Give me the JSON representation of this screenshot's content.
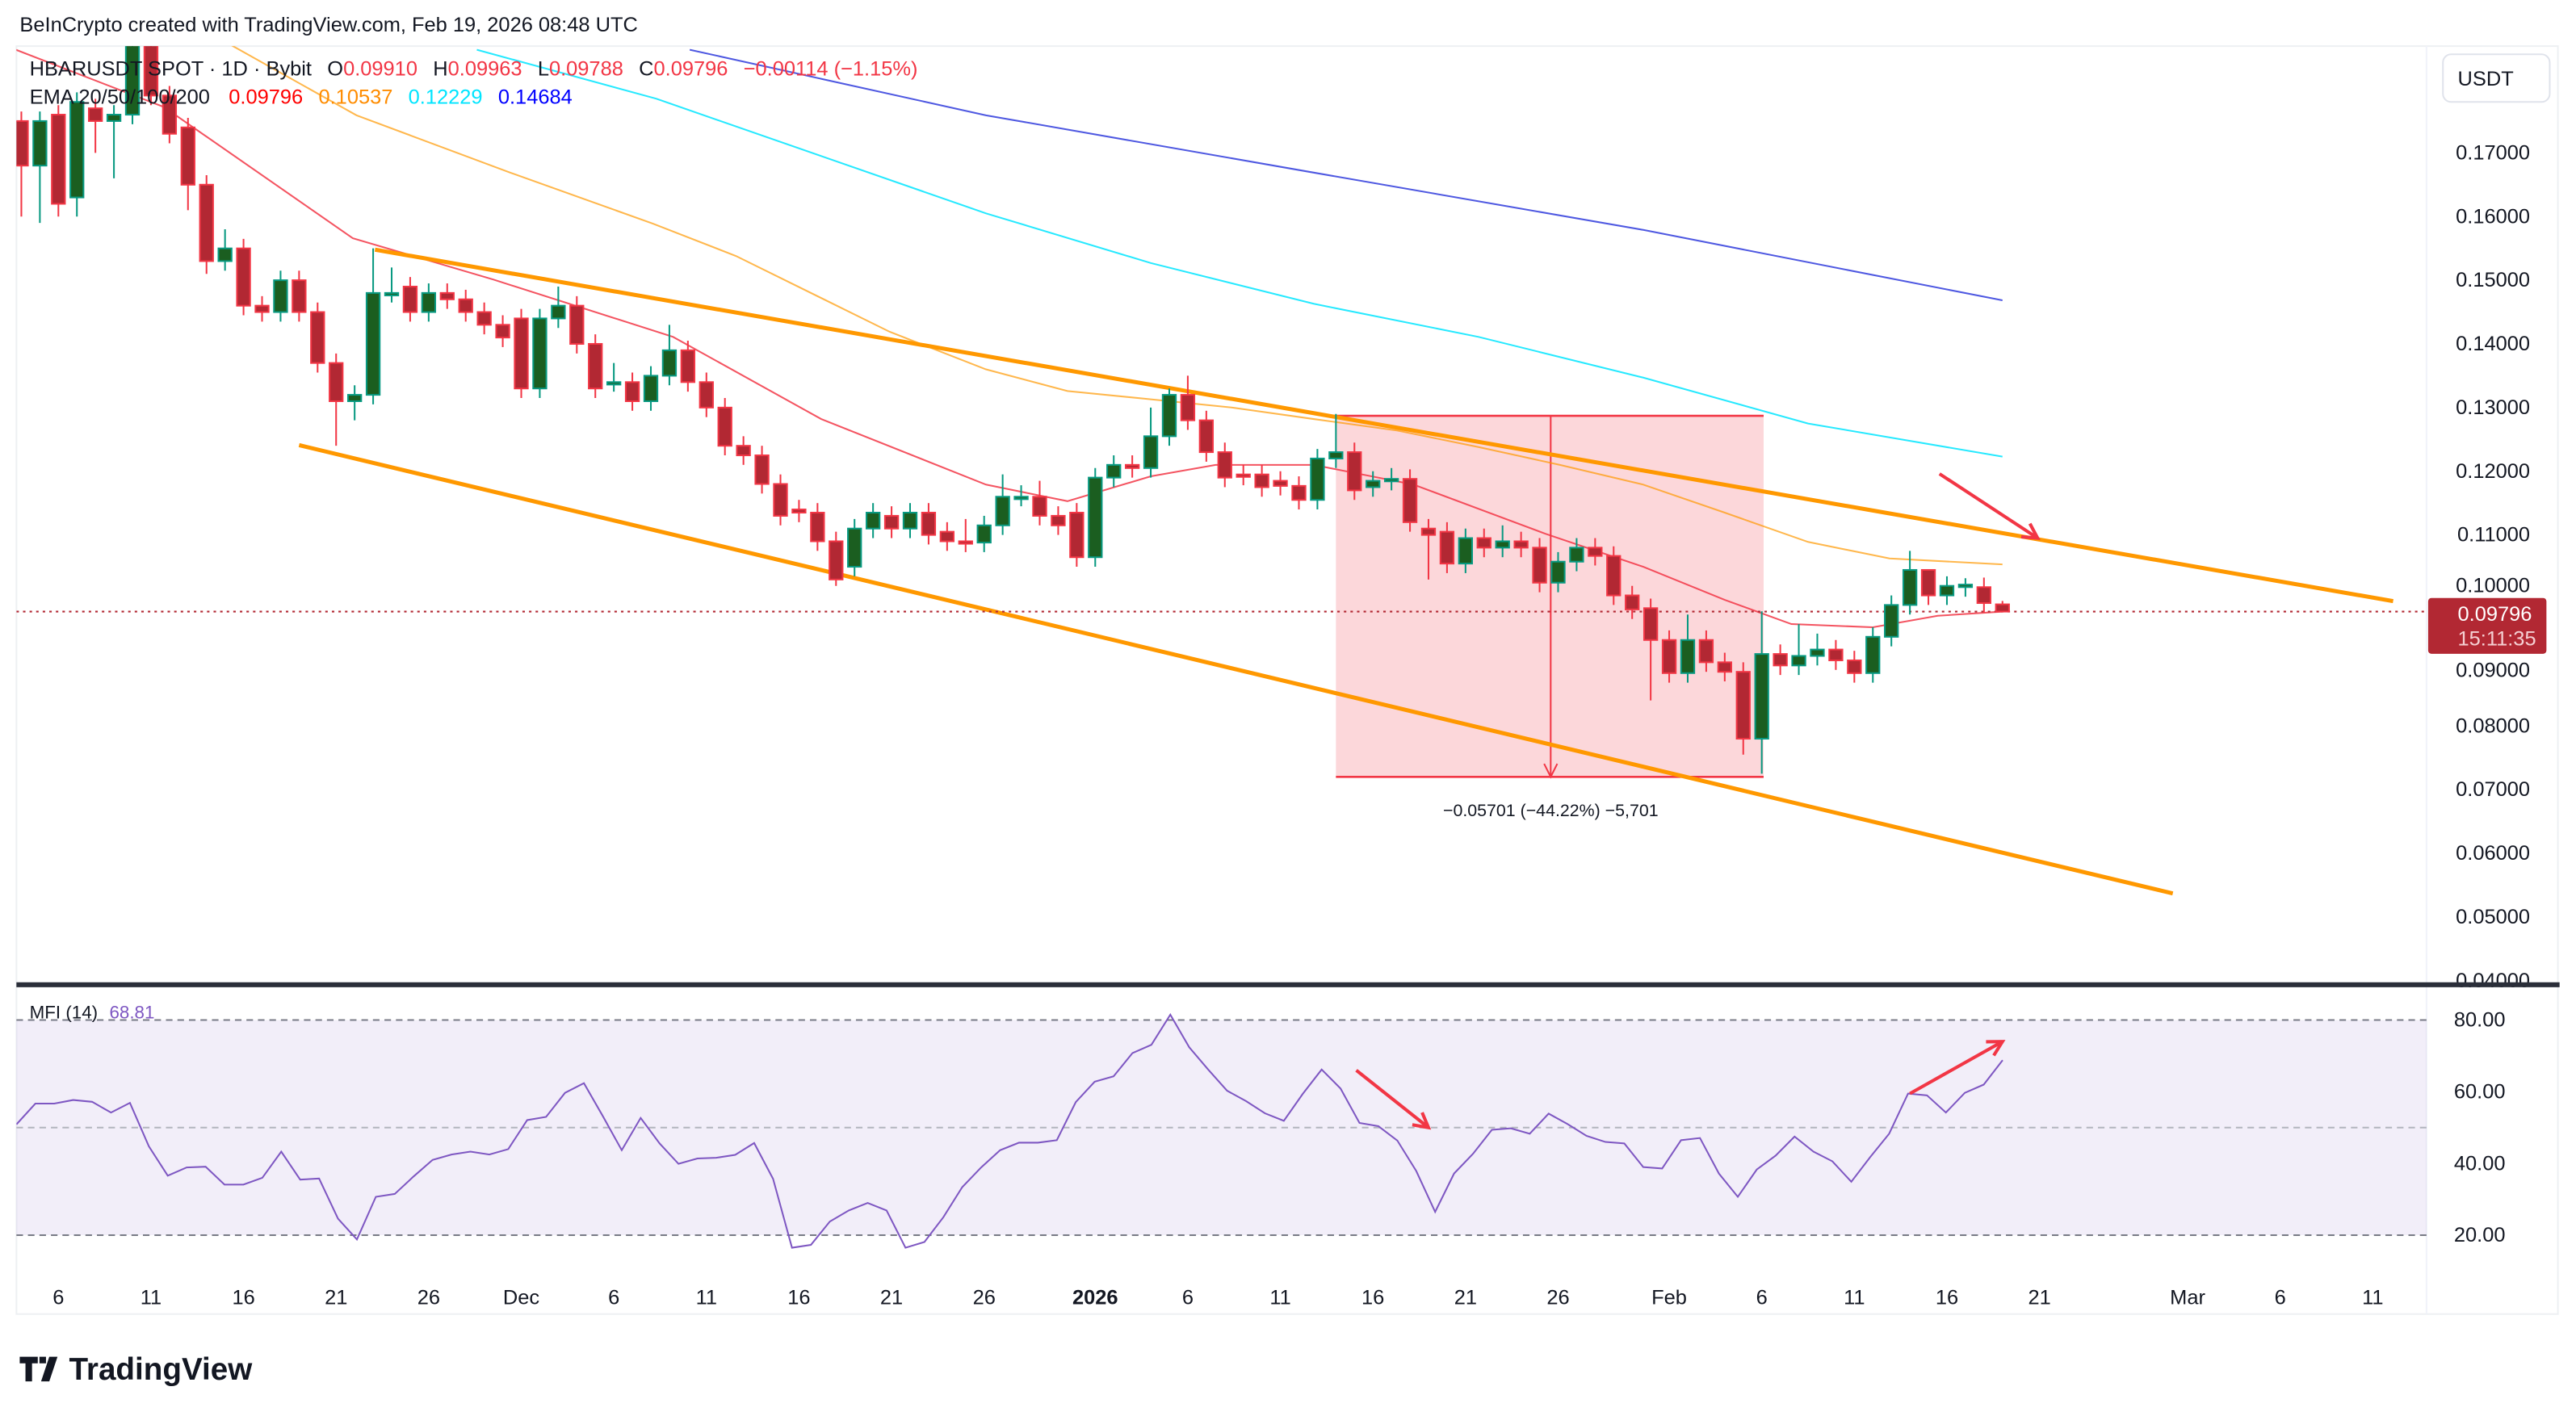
{
  "header": {
    "credit": "BeInCrypto created with TradingView.com, Feb 19, 2026 08:48 UTC"
  },
  "legend": {
    "symbol": "HBARUSDT SPOT · 1D · Bybit",
    "o_label": "O",
    "o": "0.09910",
    "h_label": "H",
    "h": "0.09963",
    "l_label": "L",
    "l": "0.09788",
    "c_label": "C",
    "c": "0.09796",
    "change": "−0.00114 (−1.15%)",
    "ema_label": "EMA 20/50/100/200",
    "ema20": "0.09796",
    "ema50": "0.10537",
    "ema100": "0.12229",
    "ema200": "0.14684"
  },
  "price_axis": {
    "currency_button": "USDT",
    "ticks": [
      "0.17000",
      "0.16000",
      "0.15000",
      "0.14000",
      "0.13000",
      "0.12000",
      "0.11000",
      "0.10000",
      "0.09000",
      "0.08000",
      "0.07000",
      "0.06000",
      "0.05000",
      "0.04000"
    ],
    "last_price": "0.09796",
    "countdown": "15:11:35"
  },
  "measure": {
    "label": "−0.05701 (−44.22%) −5,701"
  },
  "mfi": {
    "label": "MFI (14)",
    "value": "68.81",
    "ticks": [
      "80.00",
      "60.00",
      "40.00",
      "20.00"
    ]
  },
  "time_axis": {
    "labels": [
      "6",
      "11",
      "16",
      "21",
      "26",
      "Dec",
      "6",
      "11",
      "16",
      "21",
      "26",
      "2026",
      "6",
      "11",
      "16",
      "21",
      "26",
      "Feb",
      "6",
      "11",
      "16",
      "21",
      "Mar",
      "6",
      "11"
    ]
  },
  "footer": {
    "logo_text": "TradingView"
  },
  "colors": {
    "up_body": "#1b5e20",
    "up_border": "#089981",
    "down_body": "#b22833",
    "down_border": "#f23645",
    "ema20": "#f23645",
    "ema50": "#ff9800",
    "ema100": "#00e5ff",
    "ema200": "#2f3bdc",
    "channel": "#ff9800",
    "mfi": "#7e57c2",
    "annotation": "#f23645"
  },
  "chart_data": [
    {
      "type": "candlestick",
      "title": "HBARUSDT SPOT · 1D · Bybit",
      "first_date": "Nov 4",
      "last_date": "Feb 19",
      "ylim": [
        0.04,
        0.187
      ],
      "ylabel": "USDT",
      "candles_oc_hl": [
        [
          0.175,
          0.168,
          0,
          0.16
        ],
        [
          0.168,
          0.175,
          0,
          0.159
        ],
        [
          0.176,
          0.162,
          0,
          0.16
        ],
        [
          0.163,
          0.178,
          0,
          0.16
        ],
        [
          0.177,
          0.175,
          0,
          0.17
        ],
        [
          0.175,
          0.176,
          0,
          0.166
        ],
        [
          0.176,
          0.187
        ],
        [
          0.187,
          0.179
        ],
        [
          0.179,
          0.173
        ],
        [
          0.174,
          0.165,
          0,
          0.161
        ],
        [
          0.165,
          0.153,
          0,
          0.151
        ],
        [
          0.153,
          0.155,
          0.158
        ],
        [
          0.155,
          0.146
        ],
        [
          0.146,
          0.145
        ],
        [
          0.145,
          0.15
        ],
        [
          0.15,
          0.145
        ],
        [
          0.145,
          0.137
        ],
        [
          0.137,
          0.131,
          0,
          0.124
        ],
        [
          0.131,
          0.132,
          0,
          0.128
        ],
        [
          0.132,
          0.148,
          0.155
        ],
        [
          0.148,
          0.148,
          0.152
        ],
        [
          0.149,
          0.145
        ],
        [
          0.145,
          0.148
        ],
        [
          0.148,
          0.147
        ],
        [
          0.147,
          0.145
        ],
        [
          0.145,
          0.143
        ],
        [
          0.143,
          0.141
        ],
        [
          0.144,
          0.133
        ],
        [
          0.133,
          0.144
        ],
        [
          0.144,
          0.146,
          0.149
        ],
        [
          0.146,
          0.14
        ],
        [
          0.14,
          0.133
        ],
        [
          0.134,
          0.134,
          0.137
        ],
        [
          0.134,
          0.131
        ],
        [
          0.131,
          0.135
        ],
        [
          0.135,
          0.139,
          0.143
        ],
        [
          0.139,
          0.134
        ],
        [
          0.134,
          0.13
        ],
        [
          0.13,
          0.124
        ],
        [
          0.124,
          0.1225
        ],
        [
          0.1225,
          0.118
        ],
        [
          0.118,
          0.113
        ],
        [
          0.114,
          0.1135
        ],
        [
          0.1135,
          0.109
        ],
        [
          0.109,
          0.103,
          0,
          0.102
        ],
        [
          0.105,
          0.111
        ],
        [
          0.111,
          0.1135
        ],
        [
          0.113,
          0.111
        ],
        [
          0.111,
          0.1135
        ],
        [
          0.1135,
          0.11
        ],
        [
          0.1105,
          0.109
        ],
        [
          0.109,
          0.1088,
          0.1125
        ],
        [
          0.1088,
          0.1115
        ],
        [
          0.1115,
          0.116,
          0.1195
        ],
        [
          0.116,
          0.116,
          0.1178
        ],
        [
          0.116,
          0.113,
          0.1185
        ],
        [
          0.113,
          0.1115
        ],
        [
          0.1135,
          0.1065
        ],
        [
          0.1065,
          0.119
        ],
        [
          0.119,
          0.121
        ],
        [
          0.121,
          0.1205
        ],
        [
          0.1205,
          0.1255,
          0.13
        ],
        [
          0.1255,
          0.132,
          0.133
        ],
        [
          0.132,
          0.128,
          0.135
        ],
        [
          0.128,
          0.123
        ],
        [
          0.123,
          0.119
        ],
        [
          0.1195,
          0.1193
        ],
        [
          0.1195,
          0.1175
        ],
        [
          0.1185,
          0.1177
        ],
        [
          0.1177,
          0.1155
        ],
        [
          0.1155,
          0.122
        ],
        [
          0.122,
          0.123,
          0.129
        ],
        [
          0.123,
          0.117
        ],
        [
          0.1175,
          0.1185
        ],
        [
          0.1185,
          0.1188,
          0.1205
        ],
        [
          0.1188,
          0.112
        ],
        [
          0.111,
          0.11,
          0,
          0.103
        ],
        [
          0.1105,
          0.1055
        ],
        [
          0.1055,
          0.1095
        ],
        [
          0.1095,
          0.108
        ],
        [
          0.108,
          0.109,
          0.1115
        ],
        [
          0.109,
          0.108
        ],
        [
          0.108,
          0.1025
        ],
        [
          0.1025,
          0.1058
        ],
        [
          0.1058,
          0.108
        ],
        [
          0.108,
          0.1067
        ],
        [
          0.1067,
          0.1005
        ],
        [
          0.1005,
          0.0983
        ],
        [
          0.0985,
          0.0935,
          0,
          0.084
        ],
        [
          0.0935,
          0.0883
        ],
        [
          0.0883,
          0.0935,
          0.0975
        ],
        [
          0.0935,
          0.09
        ],
        [
          0.09,
          0.0885
        ],
        [
          0.0885,
          0.078,
          0,
          0.0755
        ],
        [
          0.078,
          0.0913,
          0.098,
          0.0725
        ],
        [
          0.0913,
          0.0895
        ],
        [
          0.0895,
          0.091,
          0.096
        ],
        [
          0.091,
          0.092,
          0.0945
        ],
        [
          0.092,
          0.0903
        ],
        [
          0.0903,
          0.0883
        ],
        [
          0.0883,
          0.094
        ],
        [
          0.094,
          0.099
        ],
        [
          0.099,
          0.1045,
          0.1075
        ],
        [
          0.1045,
          0.1005,
          0.1045
        ],
        [
          0.1005,
          0.102
        ],
        [
          0.1018,
          0.1022,
          0.1032
        ],
        [
          0.1018,
          0.0993
        ],
        [
          0.0991,
          0.09796,
          0.09963,
          0.09788
        ]
      ],
      "ema_series": [
        {
          "name": "EMA 20",
          "points": [
            [
              -0.3,
              0.1862
            ],
            [
              7.7,
              0.1772
            ],
            [
              17.9,
              0.1566
            ],
            [
              25.5,
              0.1501
            ],
            [
              35.2,
              0.1411
            ],
            [
              43.2,
              0.1282
            ],
            [
              52.1,
              0.1179
            ],
            [
              56.5,
              0.1153
            ],
            [
              61,
              0.1192
            ],
            [
              64.5,
              0.121
            ],
            [
              69.8,
              0.121
            ],
            [
              75.2,
              0.1179
            ],
            [
              82.3,
              0.1102
            ],
            [
              87.6,
              0.105
            ],
            [
              92,
              0.0998
            ],
            [
              95.6,
              0.096
            ],
            [
              100,
              0.0955
            ],
            [
              103.5,
              0.0973
            ],
            [
              107,
              0.09796
            ]
          ]
        },
        {
          "name": "EMA 50",
          "points": [
            [
              11.1,
              0.1873
            ],
            [
              18.1,
              0.1759
            ],
            [
              26.4,
              0.1669
            ],
            [
              34.1,
              0.1589
            ],
            [
              38.6,
              0.1538
            ],
            [
              46.9,
              0.1419
            ],
            [
              52.1,
              0.136
            ],
            [
              56.5,
              0.1326
            ],
            [
              61,
              0.1313
            ],
            [
              65.4,
              0.13
            ],
            [
              69.8,
              0.1282
            ],
            [
              74.3,
              0.1264
            ],
            [
              78.7,
              0.1238
            ],
            [
              83.1,
              0.121
            ],
            [
              87.6,
              0.1179
            ],
            [
              92,
              0.1135
            ],
            [
              96.5,
              0.1089
            ],
            [
              100.9,
              0.1063
            ],
            [
              107,
              0.10537
            ]
          ]
        },
        {
          "name": "EMA 100",
          "points": [
            [
              24.6,
              0.1862
            ],
            [
              34.3,
              0.1785
            ],
            [
              43.2,
              0.1695
            ],
            [
              52.1,
              0.1605
            ],
            [
              61,
              0.1527
            ],
            [
              69.8,
              0.1463
            ],
            [
              78.7,
              0.1411
            ],
            [
              87.6,
              0.1347
            ],
            [
              96.5,
              0.1275
            ],
            [
              107,
              0.12229
            ]
          ]
        },
        {
          "name": "EMA 200",
          "points": [
            [
              36.1,
              0.1862
            ],
            [
              52.1,
              0.1759
            ],
            [
              69.8,
              0.1669
            ],
            [
              87.6,
              0.1579
            ],
            [
              107,
              0.14684
            ]
          ]
        }
      ],
      "channel": {
        "upper": [
          [
            19.1,
            0.1548
          ],
          [
            128.1,
            0.0996
          ]
        ],
        "lower": [
          [
            15.0,
            0.1241
          ],
          [
            116.2,
            0.0537
          ]
        ]
      },
      "measure_box": {
        "from_day": 71.0,
        "to_day": 94.1,
        "top": 0.1287,
        "bottom": 0.072,
        "arrow_day": 82.6
      },
      "arrows": [
        {
          "from": [
            103.6,
            0.1196
          ],
          "to": [
            108.9,
            0.1095
          ]
        }
      ],
      "time_ticks_day_index": [
        2,
        7,
        12,
        17,
        22,
        27,
        32,
        37,
        42,
        47,
        52,
        58,
        63,
        68,
        73,
        78,
        83,
        89,
        94,
        99,
        104,
        109,
        117,
        122,
        127
      ]
    },
    {
      "type": "line",
      "title": "MFI (14)",
      "ylim": [
        10,
        85
      ],
      "bands": [
        20,
        50,
        80
      ],
      "values": [
        50.9,
        56.7,
        56.7,
        57.7,
        57.2,
        54.2,
        56.9,
        44.8,
        36.6,
        38.9,
        39.1,
        34.1,
        34.1,
        36,
        43.3,
        35.5,
        35.8,
        24.6,
        18.8,
        30.7,
        31.5,
        36.4,
        41,
        42.5,
        43.3,
        42.5,
        44,
        52.1,
        53,
        59.7,
        62.4,
        53.2,
        43.7,
        52.7,
        45.6,
        39.9,
        41.4,
        41.6,
        42.4,
        45.7,
        35.7,
        16.5,
        17.3,
        23.8,
        26.9,
        29,
        26.9,
        16.5,
        18.1,
        25,
        33.4,
        38.9,
        43.7,
        45.8,
        45.8,
        46.5,
        57.1,
        62.8,
        64.3,
        70.8,
        73.1,
        81.5,
        72.4,
        66.2,
        60.3,
        57.4,
        54,
        51.9,
        59.4,
        66.2,
        60.9,
        51.3,
        50.4,
        46.4,
        37.9,
        26.5,
        37.2,
        42.7,
        49.4,
        49.8,
        48.3,
        53.9,
        51,
        47.7,
        46,
        45.6,
        39,
        38.6,
        46.5,
        47.1,
        37.2,
        30.7,
        38.3,
        42.2,
        47.5,
        43.3,
        40.6,
        34.9,
        41.8,
        48.3,
        59.5,
        59,
        54.2,
        59.7,
        62,
        68.81
      ],
      "arrows": [
        {
          "from_value": 66,
          "to_value": 50,
          "from_day": 72.1,
          "to_day": 76
        },
        {
          "from_value": 59.5,
          "to_value": 74,
          "from_day": 102,
          "to_day": 107
        }
      ]
    }
  ]
}
